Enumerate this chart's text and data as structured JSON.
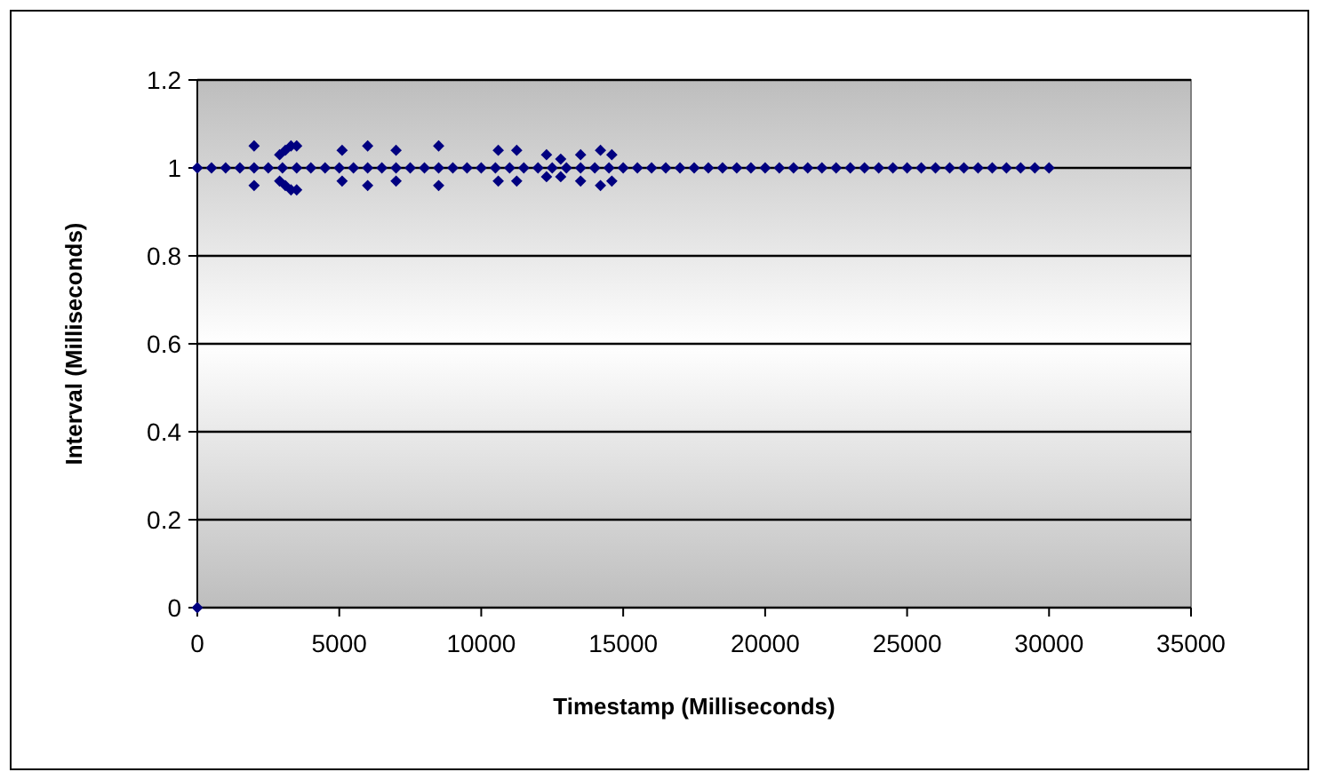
{
  "chart_data": {
    "type": "scatter",
    "xlabel": "Timestamp (Milliseconds)",
    "ylabel": "Interval (Milliseconds)",
    "xlim": [
      0,
      35000
    ],
    "xticks": [
      0,
      5000,
      10000,
      15000,
      20000,
      25000,
      30000,
      35000
    ],
    "ylim": [
      0,
      1.2
    ],
    "yticks": [
      0,
      0.2,
      0.4,
      0.6,
      0.8,
      1,
      1.2
    ],
    "grid": "y",
    "marker": "diamond",
    "series": [
      {
        "color": "#000080",
        "x": [
          0,
          500,
          1000,
          1500,
          2000,
          2500,
          3000,
          3500,
          4000,
          4500,
          5000,
          5500,
          6000,
          6500,
          7000,
          7500,
          8000,
          8500,
          9000,
          9500,
          10000,
          10500,
          11000,
          11500,
          12000,
          12500,
          13000,
          13500,
          14000,
          14500,
          15000,
          15500,
          16000,
          16500,
          17000,
          17500,
          18000,
          18500,
          19000,
          19500,
          20000,
          20500,
          21000,
          21500,
          22000,
          22500,
          23000,
          23500,
          24000,
          24500,
          25000,
          25500,
          26000,
          26500,
          27000,
          27500,
          28000,
          28500,
          29000,
          29500,
          30000,
          0,
          2000,
          2000,
          2900,
          3100,
          3300,
          3500,
          2900,
          3100,
          3300,
          3500,
          5100,
          5100,
          6000,
          6000,
          7000,
          7000,
          8500,
          8500,
          10600,
          10600,
          11250,
          11250,
          12300,
          12300,
          12800,
          12800,
          13500,
          13500,
          14200,
          14200,
          14600,
          14600
        ],
        "values": [
          1,
          1,
          1,
          1,
          1,
          1,
          1,
          1,
          1,
          1,
          1,
          1,
          1,
          1,
          1,
          1,
          1,
          1,
          1,
          1,
          1,
          1,
          1,
          1,
          1,
          1,
          1,
          1,
          1,
          1,
          1,
          1,
          1,
          1,
          1,
          1,
          1,
          1,
          1,
          1,
          1,
          1,
          1,
          1,
          1,
          1,
          1,
          1,
          1,
          1,
          1,
          1,
          1,
          1,
          1,
          1,
          1,
          1,
          1,
          1,
          1,
          0,
          1.05,
          0.96,
          1.03,
          1.04,
          1.05,
          1.05,
          0.97,
          0.96,
          0.95,
          0.95,
          1.04,
          0.97,
          1.05,
          0.96,
          1.04,
          0.97,
          1.05,
          0.96,
          1.04,
          0.97,
          1.04,
          0.97,
          1.03,
          0.98,
          1.02,
          0.98,
          1.03,
          0.97,
          1.04,
          0.96,
          1.03,
          0.97
        ]
      }
    ]
  }
}
